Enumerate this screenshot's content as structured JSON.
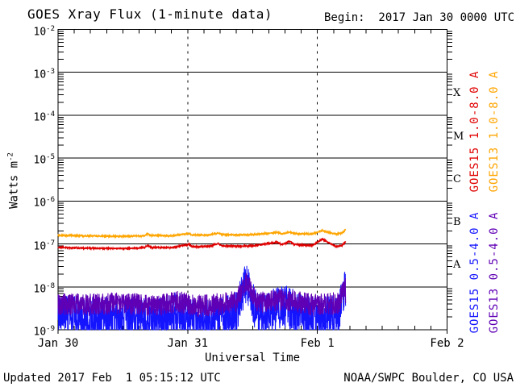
{
  "header": {
    "begin_label": "Begin:  2017 Jan 30 0000 UTC"
  },
  "footer": {
    "updated": "Updated 2017 Feb  1 05:15:12 UTC",
    "credit": "NOAA/SWPC Boulder, CO USA"
  },
  "colors": {
    "goes15_long": "#e00000",
    "goes13_long": "#ffa500",
    "goes15_short": "#1414ff",
    "goes13_short": "#5f00b5",
    "axis": "#000000",
    "background": "#ffffff"
  },
  "chart_data": {
    "type": "line",
    "title": "GOES Xray Flux (1-minute data)",
    "xlabel": "Universal Time",
    "ylabel_base": "Watts m",
    "ylabel_sup": "-2",
    "x_axis": "time (UTC), 2017 Jan 30 00:00 to Feb 2 00:00, major ticks daily, minor ticks 3-hourly",
    "x_ticks": [
      {
        "label": "Jan 30",
        "hour": 0
      },
      {
        "label": "Jan 31",
        "hour": 24
      },
      {
        "label": "Feb 1",
        "hour": 48
      },
      {
        "label": "Feb 2",
        "hour": 72
      }
    ],
    "y_scale": "log",
    "ylim_exp": [
      -9,
      -2
    ],
    "y_tick_exponents": [
      -2,
      -3,
      -4,
      -5,
      -6,
      -7,
      -8,
      -9
    ],
    "flare_classes": [
      {
        "label": "X",
        "center_exp": -3.5
      },
      {
        "label": "M",
        "center_exp": -4.5
      },
      {
        "label": "C",
        "center_exp": -5.5
      },
      {
        "label": "B",
        "center_exp": -6.5
      },
      {
        "label": "A",
        "center_exp": -7.5
      }
    ],
    "grid": {
      "horizontal_solid_decades": [
        -3,
        -4,
        -5,
        -6,
        -7,
        -8
      ],
      "vertical_dashed_hours": [
        24,
        48
      ]
    },
    "data_end_hour": 53.25,
    "noise_seed": 20170130,
    "series": [
      {
        "name": "GOES15 1.0-8.0 A",
        "color": "#e00000",
        "width": 1.4,
        "noise_amp": 0.013,
        "points": [
          [
            0,
            8.3e-08
          ],
          [
            4,
            8e-08
          ],
          [
            8,
            7.9e-08
          ],
          [
            12,
            7.8e-08
          ],
          [
            16,
            8.2e-08
          ],
          [
            16.6,
            9.3e-08
          ],
          [
            17.2,
            8.3e-08
          ],
          [
            21,
            8.2e-08
          ],
          [
            24.2,
            9.8e-08
          ],
          [
            24.8,
            8.6e-08
          ],
          [
            28,
            8.8e-08
          ],
          [
            29.6,
            1.02e-07
          ],
          [
            30.4,
            9e-08
          ],
          [
            33,
            8.8e-08
          ],
          [
            36,
            9e-08
          ],
          [
            40.6,
            1.1e-07
          ],
          [
            41.4,
            9.5e-08
          ],
          [
            42.9,
            1.15e-07
          ],
          [
            43.6,
            9.8e-08
          ],
          [
            45,
            9.5e-08
          ],
          [
            47,
            9.2e-08
          ],
          [
            48.9,
            1.3e-07
          ],
          [
            50.5,
            1e-07
          ],
          [
            51.5,
            8.8e-08
          ],
          [
            52.5,
            9.2e-08
          ],
          [
            53.25,
            1.12e-07
          ]
        ]
      },
      {
        "name": "GOES13 1.0-8.0 A",
        "color": "#ffa500",
        "width": 1.4,
        "noise_amp": 0.013,
        "points": [
          [
            0,
            1.58e-07
          ],
          [
            4,
            1.55e-07
          ],
          [
            8,
            1.52e-07
          ],
          [
            12,
            1.5e-07
          ],
          [
            16,
            1.55e-07
          ],
          [
            16.6,
            1.72e-07
          ],
          [
            17.2,
            1.58e-07
          ],
          [
            21,
            1.55e-07
          ],
          [
            24.2,
            1.75e-07
          ],
          [
            24.8,
            1.62e-07
          ],
          [
            28,
            1.62e-07
          ],
          [
            29.6,
            1.78e-07
          ],
          [
            30.4,
            1.65e-07
          ],
          [
            33,
            1.62e-07
          ],
          [
            36,
            1.65e-07
          ],
          [
            40.6,
            1.85e-07
          ],
          [
            41.4,
            1.7e-07
          ],
          [
            42.9,
            1.9e-07
          ],
          [
            43.6,
            1.75e-07
          ],
          [
            45,
            1.72e-07
          ],
          [
            47,
            1.7e-07
          ],
          [
            48.9,
            2.05e-07
          ],
          [
            50.5,
            1.8e-07
          ],
          [
            51.5,
            1.7e-07
          ],
          [
            52.5,
            1.78e-07
          ],
          [
            53.25,
            2.15e-07
          ]
        ]
      },
      {
        "name": "GOES15 0.5-4.0 A",
        "color": "#1414ff",
        "width": 1,
        "noise_amp": 0.5,
        "points": [
          [
            0,
            2.2e-09
          ],
          [
            6,
            1.8e-09
          ],
          [
            12,
            2e-09
          ],
          [
            18,
            1.7e-09
          ],
          [
            22,
            2.4e-09
          ],
          [
            26,
            1.6e-09
          ],
          [
            30,
            1.8e-09
          ],
          [
            33,
            2.5e-09
          ],
          [
            34.3,
            9e-09
          ],
          [
            35.0,
            1.3e-08
          ],
          [
            35.6,
            6e-09
          ],
          [
            37,
            2.2e-09
          ],
          [
            40,
            3e-09
          ],
          [
            42,
            3.5e-09
          ],
          [
            44,
            2.8e-09
          ],
          [
            46,
            2e-09
          ],
          [
            48,
            1.8e-09
          ],
          [
            50,
            2e-09
          ],
          [
            52,
            2.2e-09
          ],
          [
            52.8,
            7e-09
          ],
          [
            53.1,
            9e-09
          ],
          [
            53.25,
            5e-09
          ]
        ]
      },
      {
        "name": "GOES13 0.5-4.0 A",
        "color": "#5f00b5",
        "width": 1,
        "noise_amp": 0.26,
        "points": [
          [
            0,
            4e-09
          ],
          [
            6,
            3.8e-09
          ],
          [
            12,
            4.2e-09
          ],
          [
            18,
            3.6e-09
          ],
          [
            22,
            4.5e-09
          ],
          [
            26,
            3.5e-09
          ],
          [
            30,
            4e-09
          ],
          [
            33,
            4.5e-09
          ],
          [
            34.3,
            1e-08
          ],
          [
            35.0,
            1.5e-08
          ],
          [
            35.6,
            8e-09
          ],
          [
            37,
            4.2e-09
          ],
          [
            40,
            4.8e-09
          ],
          [
            42,
            5e-09
          ],
          [
            44,
            4.5e-09
          ],
          [
            46,
            4e-09
          ],
          [
            48,
            3.8e-09
          ],
          [
            50,
            4e-09
          ],
          [
            52,
            4.2e-09
          ],
          [
            52.9,
            9e-09
          ],
          [
            53.15,
            1.1e-08
          ],
          [
            53.25,
            7e-09
          ]
        ]
      }
    ]
  }
}
